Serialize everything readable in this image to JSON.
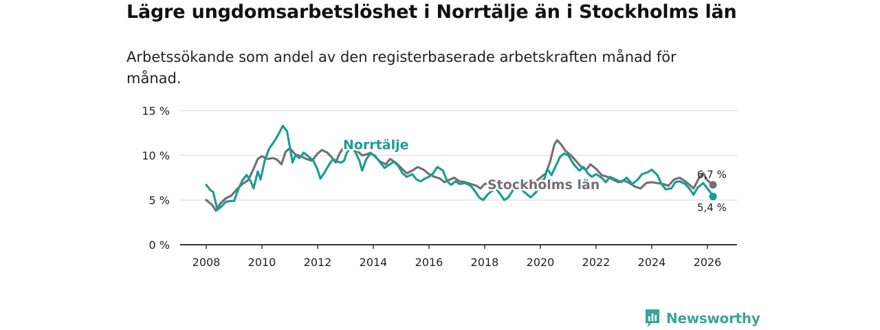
{
  "header": {
    "title": "Lägre ungdomsarbetslöshet i Norrtälje än i Stockholms län",
    "subtitle": "Arbetssökande som andel av den registerbaserade arbetskraften månad för månad."
  },
  "brand": {
    "name": "Newsworthy",
    "color": "#3aa597"
  },
  "chart_data": {
    "type": "line",
    "title": "Lägre ungdomsarbetslöshet i Norrtälje än i Stockholms län",
    "xlabel": "",
    "ylabel": "",
    "xlim": [
      2007.5,
      2027.2
    ],
    "ylim": [
      0,
      15
    ],
    "grid": true,
    "x_ticks": [
      2008,
      2010,
      2012,
      2014,
      2016,
      2018,
      2020,
      2022,
      2024,
      2026
    ],
    "x_tick_labels": [
      "2008",
      "2010",
      "2012",
      "2014",
      "2016",
      "2018",
      "2020",
      "2022",
      "2024",
      "2026"
    ],
    "y_ticks": [
      0,
      5,
      10,
      15
    ],
    "y_tick_labels": [
      "0 %",
      "5 %",
      "10 %",
      "15 %"
    ],
    "series": [
      {
        "name": "Stockholms län",
        "color": "#717073",
        "end_label": "6,7 %",
        "points": [
          [
            2008.0,
            5.0
          ],
          [
            2008.2,
            4.5
          ],
          [
            2008.35,
            3.8
          ],
          [
            2008.5,
            4.6
          ],
          [
            2008.7,
            5.2
          ],
          [
            2008.9,
            5.5
          ],
          [
            2009.1,
            6.2
          ],
          [
            2009.3,
            6.8
          ],
          [
            2009.5,
            7.2
          ],
          [
            2009.7,
            8.5
          ],
          [
            2009.85,
            9.6
          ],
          [
            2010.0,
            9.9
          ],
          [
            2010.2,
            9.6
          ],
          [
            2010.4,
            9.7
          ],
          [
            2010.55,
            9.5
          ],
          [
            2010.7,
            9.0
          ],
          [
            2010.85,
            10.4
          ],
          [
            2011.0,
            10.8
          ],
          [
            2011.2,
            10.1
          ],
          [
            2011.4,
            9.9
          ],
          [
            2011.6,
            9.6
          ],
          [
            2011.8,
            9.4
          ],
          [
            2012.0,
            10.2
          ],
          [
            2012.15,
            10.6
          ],
          [
            2012.35,
            10.3
          ],
          [
            2012.5,
            9.8
          ],
          [
            2012.65,
            9.2
          ],
          [
            2012.8,
            10.3
          ],
          [
            2012.95,
            10.9
          ],
          [
            2013.1,
            11.1
          ],
          [
            2013.25,
            10.8
          ],
          [
            2013.45,
            10.4
          ],
          [
            2013.6,
            10.0
          ],
          [
            2013.75,
            10.1
          ],
          [
            2013.9,
            10.3
          ],
          [
            2014.05,
            9.9
          ],
          [
            2014.25,
            9.3
          ],
          [
            2014.45,
            9.0
          ],
          [
            2014.6,
            9.6
          ],
          [
            2014.8,
            9.2
          ],
          [
            2015.0,
            8.6
          ],
          [
            2015.2,
            8.0
          ],
          [
            2015.4,
            8.3
          ],
          [
            2015.6,
            8.7
          ],
          [
            2015.8,
            8.4
          ],
          [
            2016.0,
            7.9
          ],
          [
            2016.2,
            7.6
          ],
          [
            2016.4,
            7.4
          ],
          [
            2016.55,
            7.0
          ],
          [
            2016.75,
            7.3
          ],
          [
            2016.9,
            7.5
          ],
          [
            2017.1,
            7.1
          ],
          [
            2017.3,
            7.0
          ],
          [
            2017.5,
            6.8
          ],
          [
            2017.7,
            6.6
          ],
          [
            2017.85,
            6.3
          ],
          [
            2018.0,
            6.8
          ],
          [
            2018.2,
            6.9
          ],
          [
            2018.4,
            6.6
          ],
          [
            2018.6,
            6.2
          ],
          [
            2018.8,
            6.3
          ],
          [
            2019.0,
            6.5
          ],
          [
            2019.2,
            6.6
          ],
          [
            2019.4,
            6.3
          ],
          [
            2019.6,
            6.7
          ],
          [
            2019.8,
            7.0
          ],
          [
            2020.0,
            7.5
          ],
          [
            2020.2,
            8.0
          ],
          [
            2020.35,
            9.3
          ],
          [
            2020.5,
            11.2
          ],
          [
            2020.6,
            11.7
          ],
          [
            2020.75,
            11.2
          ],
          [
            2020.9,
            10.5
          ],
          [
            2021.1,
            10.0
          ],
          [
            2021.3,
            9.3
          ],
          [
            2021.5,
            8.6
          ],
          [
            2021.65,
            8.4
          ],
          [
            2021.8,
            9.0
          ],
          [
            2022.0,
            8.5
          ],
          [
            2022.2,
            7.8
          ],
          [
            2022.4,
            7.6
          ],
          [
            2022.6,
            7.3
          ],
          [
            2022.8,
            7.0
          ],
          [
            2023.0,
            7.2
          ],
          [
            2023.2,
            6.9
          ],
          [
            2023.4,
            6.5
          ],
          [
            2023.6,
            6.3
          ],
          [
            2023.8,
            6.9
          ],
          [
            2024.0,
            7.0
          ],
          [
            2024.2,
            6.9
          ],
          [
            2024.4,
            6.8
          ],
          [
            2024.6,
            6.6
          ],
          [
            2024.8,
            7.3
          ],
          [
            2025.0,
            7.5
          ],
          [
            2025.2,
            7.1
          ],
          [
            2025.4,
            6.6
          ],
          [
            2025.5,
            6.3
          ],
          [
            2025.7,
            7.5
          ],
          [
            2025.85,
            8.0
          ],
          [
            2026.0,
            7.2
          ],
          [
            2026.2,
            6.7
          ]
        ]
      },
      {
        "name": "Norrtälje",
        "color": "#1a9e8f",
        "end_label": "5,4 %",
        "points": [
          [
            2008.0,
            6.7
          ],
          [
            2008.15,
            6.1
          ],
          [
            2008.25,
            5.9
          ],
          [
            2008.4,
            3.9
          ],
          [
            2008.55,
            4.3
          ],
          [
            2008.7,
            4.8
          ],
          [
            2008.9,
            4.9
          ],
          [
            2009.0,
            4.9
          ],
          [
            2009.15,
            6.2
          ],
          [
            2009.3,
            7.2
          ],
          [
            2009.45,
            7.8
          ],
          [
            2009.6,
            7.1
          ],
          [
            2009.7,
            6.3
          ],
          [
            2009.85,
            8.2
          ],
          [
            2009.95,
            7.3
          ],
          [
            2010.1,
            9.4
          ],
          [
            2010.25,
            10.7
          ],
          [
            2010.45,
            11.6
          ],
          [
            2010.6,
            12.4
          ],
          [
            2010.75,
            13.3
          ],
          [
            2010.9,
            12.7
          ],
          [
            2011.0,
            11.0
          ],
          [
            2011.1,
            9.2
          ],
          [
            2011.2,
            10.0
          ],
          [
            2011.35,
            9.7
          ],
          [
            2011.5,
            10.3
          ],
          [
            2011.7,
            9.8
          ],
          [
            2011.85,
            9.4
          ],
          [
            2012.0,
            8.4
          ],
          [
            2012.1,
            7.4
          ],
          [
            2012.25,
            8.1
          ],
          [
            2012.4,
            8.9
          ],
          [
            2012.55,
            9.6
          ],
          [
            2012.7,
            9.3
          ],
          [
            2012.85,
            9.2
          ],
          [
            2012.95,
            9.4
          ],
          [
            2013.05,
            10.3
          ],
          [
            2013.2,
            10.9
          ],
          [
            2013.35,
            10.4
          ],
          [
            2013.5,
            9.4
          ],
          [
            2013.6,
            8.3
          ],
          [
            2013.75,
            9.6
          ],
          [
            2013.9,
            10.2
          ],
          [
            2014.05,
            10.0
          ],
          [
            2014.2,
            9.4
          ],
          [
            2014.4,
            8.6
          ],
          [
            2014.6,
            9.0
          ],
          [
            2014.75,
            9.3
          ],
          [
            2014.9,
            8.8
          ],
          [
            2015.05,
            8.0
          ],
          [
            2015.2,
            7.6
          ],
          [
            2015.4,
            7.9
          ],
          [
            2015.55,
            7.3
          ],
          [
            2015.7,
            7.1
          ],
          [
            2015.85,
            7.4
          ],
          [
            2016.0,
            7.6
          ],
          [
            2016.15,
            8.0
          ],
          [
            2016.3,
            8.7
          ],
          [
            2016.5,
            8.3
          ],
          [
            2016.65,
            7.1
          ],
          [
            2016.8,
            6.7
          ],
          [
            2016.95,
            7.1
          ],
          [
            2017.1,
            6.8
          ],
          [
            2017.3,
            6.9
          ],
          [
            2017.5,
            6.6
          ],
          [
            2017.65,
            6.0
          ],
          [
            2017.8,
            5.3
          ],
          [
            2017.95,
            5.0
          ],
          [
            2018.1,
            5.6
          ],
          [
            2018.25,
            6.0
          ],
          [
            2018.4,
            6.3
          ],
          [
            2018.55,
            5.7
          ],
          [
            2018.7,
            5.0
          ],
          [
            2018.85,
            5.3
          ],
          [
            2018.95,
            5.8
          ],
          [
            2019.1,
            6.5
          ],
          [
            2019.3,
            6.2
          ],
          [
            2019.5,
            5.7
          ],
          [
            2019.65,
            5.3
          ],
          [
            2019.85,
            5.9
          ],
          [
            2020.0,
            7.0
          ],
          [
            2020.15,
            7.4
          ],
          [
            2020.25,
            8.5
          ],
          [
            2020.4,
            7.8
          ],
          [
            2020.55,
            8.8
          ],
          [
            2020.7,
            9.8
          ],
          [
            2020.85,
            10.2
          ],
          [
            2021.0,
            10.0
          ],
          [
            2021.2,
            9.0
          ],
          [
            2021.4,
            8.3
          ],
          [
            2021.55,
            8.7
          ],
          [
            2021.7,
            8.0
          ],
          [
            2021.85,
            7.6
          ],
          [
            2022.0,
            7.9
          ],
          [
            2022.2,
            7.5
          ],
          [
            2022.35,
            7.0
          ],
          [
            2022.5,
            7.6
          ],
          [
            2022.7,
            7.3
          ],
          [
            2022.9,
            7.0
          ],
          [
            2023.1,
            7.5
          ],
          [
            2023.3,
            6.8
          ],
          [
            2023.5,
            7.3
          ],
          [
            2023.65,
            7.9
          ],
          [
            2023.85,
            8.1
          ],
          [
            2024.0,
            8.4
          ],
          [
            2024.2,
            7.8
          ],
          [
            2024.35,
            6.8
          ],
          [
            2024.5,
            6.2
          ],
          [
            2024.7,
            6.3
          ],
          [
            2024.85,
            7.0
          ],
          [
            2025.0,
            7.1
          ],
          [
            2025.2,
            6.8
          ],
          [
            2025.35,
            6.3
          ],
          [
            2025.5,
            5.6
          ],
          [
            2025.65,
            6.4
          ],
          [
            2025.85,
            6.9
          ],
          [
            2026.0,
            6.3
          ],
          [
            2026.1,
            5.9
          ],
          [
            2026.2,
            5.4
          ]
        ]
      }
    ]
  }
}
